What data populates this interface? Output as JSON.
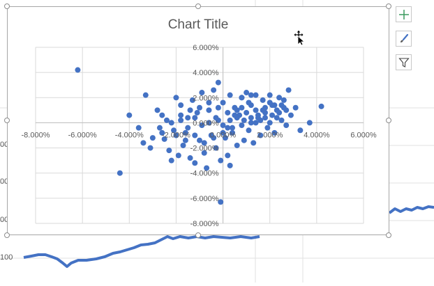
{
  "sheet": {
    "row_labels_partial": [
      "00",
      "00",
      "00",
      "100"
    ]
  },
  "chart_data": {
    "type": "scatter",
    "title": "Chart Title",
    "xlim": [
      -0.08,
      0.06
    ],
    "ylim": [
      -0.08,
      0.06
    ],
    "x_ticks": [
      -0.08,
      -0.06,
      -0.04,
      -0.02,
      0.0,
      0.02,
      0.04,
      0.06
    ],
    "y_ticks": [
      0.06,
      0.04,
      0.02,
      0.0,
      -0.02,
      -0.04,
      -0.06,
      -0.08
    ],
    "x_tick_labels": [
      "-8.000%",
      "-6.000%",
      "-4.000%",
      "-2.000%",
      "0.000%",
      "2.000%",
      "4.000%",
      "6.000%"
    ],
    "y_tick_labels": [
      "6.000%",
      "4.000%",
      "2.000%",
      "0.000%",
      "-2.000%",
      "-4.000%",
      "-6.000%",
      "-8.000%"
    ],
    "grid": true,
    "marker_color": "#4472c4",
    "points": [
      [
        -0.062,
        0.042
      ],
      [
        -0.044,
        -0.04
      ],
      [
        -0.04,
        0.006
      ],
      [
        -0.033,
        0.022
      ],
      [
        -0.036,
        -0.004
      ],
      [
        -0.034,
        -0.016
      ],
      [
        -0.031,
        -0.02
      ],
      [
        -0.028,
        0.01
      ],
      [
        -0.026,
        0.006
      ],
      [
        -0.025,
        -0.013
      ],
      [
        -0.023,
        -0.022
      ],
      [
        -0.022,
        -0.03
      ],
      [
        -0.02,
        0.02
      ],
      [
        -0.019,
        -0.026
      ],
      [
        -0.018,
        0.014
      ],
      [
        -0.017,
        -0.018
      ],
      [
        -0.016,
        -0.008
      ],
      [
        -0.015,
        0.004
      ],
      [
        -0.014,
        -0.028
      ],
      [
        -0.013,
        0.018
      ],
      [
        -0.012,
        -0.032
      ],
      [
        -0.011,
        0.008
      ],
      [
        -0.01,
        -0.014
      ],
      [
        -0.009,
        0.024
      ],
      [
        -0.008,
        -0.024
      ],
      [
        -0.007,
        -0.036
      ],
      [
        -0.006,
        0.01
      ],
      [
        -0.005,
        -0.01
      ],
      [
        -0.004,
        0.026
      ],
      [
        -0.003,
        -0.02
      ],
      [
        -0.002,
        0.032
      ],
      [
        -0.001,
        -0.03
      ],
      [
        0.0,
        0.016
      ],
      [
        0.001,
        -0.012
      ],
      [
        0.002,
        -0.026
      ],
      [
        0.003,
        0.022
      ],
      [
        0.004,
        -0.008
      ],
      [
        0.005,
        0.012
      ],
      [
        0.006,
        -0.018
      ],
      [
        0.007,
        0.006
      ],
      [
        0.008,
        0.02
      ],
      [
        0.009,
        -0.014
      ],
      [
        0.01,
        0.024
      ],
      [
        0.011,
        -0.006
      ],
      [
        0.012,
        0.014
      ],
      [
        0.013,
        -0.016
      ],
      [
        0.014,
        0.022
      ],
      [
        0.015,
        0.004
      ],
      [
        0.016,
        -0.01
      ],
      [
        0.017,
        0.018
      ],
      [
        0.018,
        0.008
      ],
      [
        0.019,
        -0.004
      ],
      [
        0.02,
        0.022
      ],
      [
        0.021,
        0.014
      ],
      [
        0.022,
        -0.008
      ],
      [
        0.023,
        0.01
      ],
      [
        0.024,
        0.02
      ],
      [
        0.025,
        0.002
      ],
      [
        0.026,
        0.012
      ],
      [
        0.027,
        -0.002
      ],
      [
        0.028,
        0.026
      ],
      [
        0.029,
        0.006
      ],
      [
        0.031,
        0.012
      ],
      [
        0.033,
        -0.006
      ],
      [
        0.037,
        0.0
      ],
      [
        0.042,
        0.013
      ],
      [
        -0.001,
        -0.063
      ],
      [
        0.003,
        -0.034
      ],
      [
        -0.027,
        -0.004
      ],
      [
        -0.024,
        0.002
      ],
      [
        -0.021,
        -0.006
      ],
      [
        -0.018,
        0.002
      ],
      [
        -0.015,
        -0.004
      ],
      [
        -0.012,
        0.004
      ],
      [
        -0.009,
        -0.002
      ],
      [
        -0.006,
        0.0
      ],
      [
        -0.003,
        0.004
      ],
      [
        0.0,
        -0.002
      ],
      [
        0.003,
        0.002
      ],
      [
        0.006,
        0.004
      ],
      [
        0.009,
        0.002
      ],
      [
        0.012,
        0.004
      ],
      [
        0.015,
        0.006
      ],
      [
        0.018,
        0.004
      ],
      [
        0.021,
        0.006
      ],
      [
        0.024,
        0.008
      ],
      [
        0.027,
        0.01
      ],
      [
        -0.02,
        -0.01
      ],
      [
        -0.016,
        -0.014
      ],
      [
        -0.012,
        -0.01
      ],
      [
        -0.008,
        -0.016
      ],
      [
        -0.004,
        -0.012
      ],
      [
        0.0,
        -0.008
      ],
      [
        0.004,
        -0.004
      ],
      [
        0.008,
        -0.002
      ],
      [
        0.012,
        0.0
      ],
      [
        0.016,
        0.002
      ],
      [
        0.02,
        0.0
      ],
      [
        -0.01,
        0.012
      ],
      [
        -0.006,
        0.016
      ],
      [
        -0.002,
        0.012
      ],
      [
        0.002,
        0.008
      ],
      [
        0.006,
        0.01
      ],
      [
        0.01,
        0.008
      ],
      [
        0.014,
        0.01
      ],
      [
        0.018,
        0.012
      ],
      [
        0.022,
        0.014
      ],
      [
        0.026,
        0.018
      ],
      [
        -0.002,
        0.002
      ],
      [
        0.002,
        -0.004
      ],
      [
        0.005,
        0.006
      ],
      [
        0.008,
        0.012
      ],
      [
        0.011,
        0.016
      ],
      [
        0.014,
        0.0
      ],
      [
        0.017,
        0.01
      ],
      [
        0.02,
        0.016
      ],
      [
        0.023,
        0.004
      ],
      [
        0.025,
        0.014
      ],
      [
        0.008,
        0.02
      ],
      [
        0.012,
        0.022
      ],
      [
        -0.014,
        0.01
      ],
      [
        -0.018,
        0.006
      ],
      [
        -0.022,
        0.0
      ],
      [
        -0.026,
        -0.008
      ],
      [
        -0.03,
        -0.012
      ]
    ]
  }
}
